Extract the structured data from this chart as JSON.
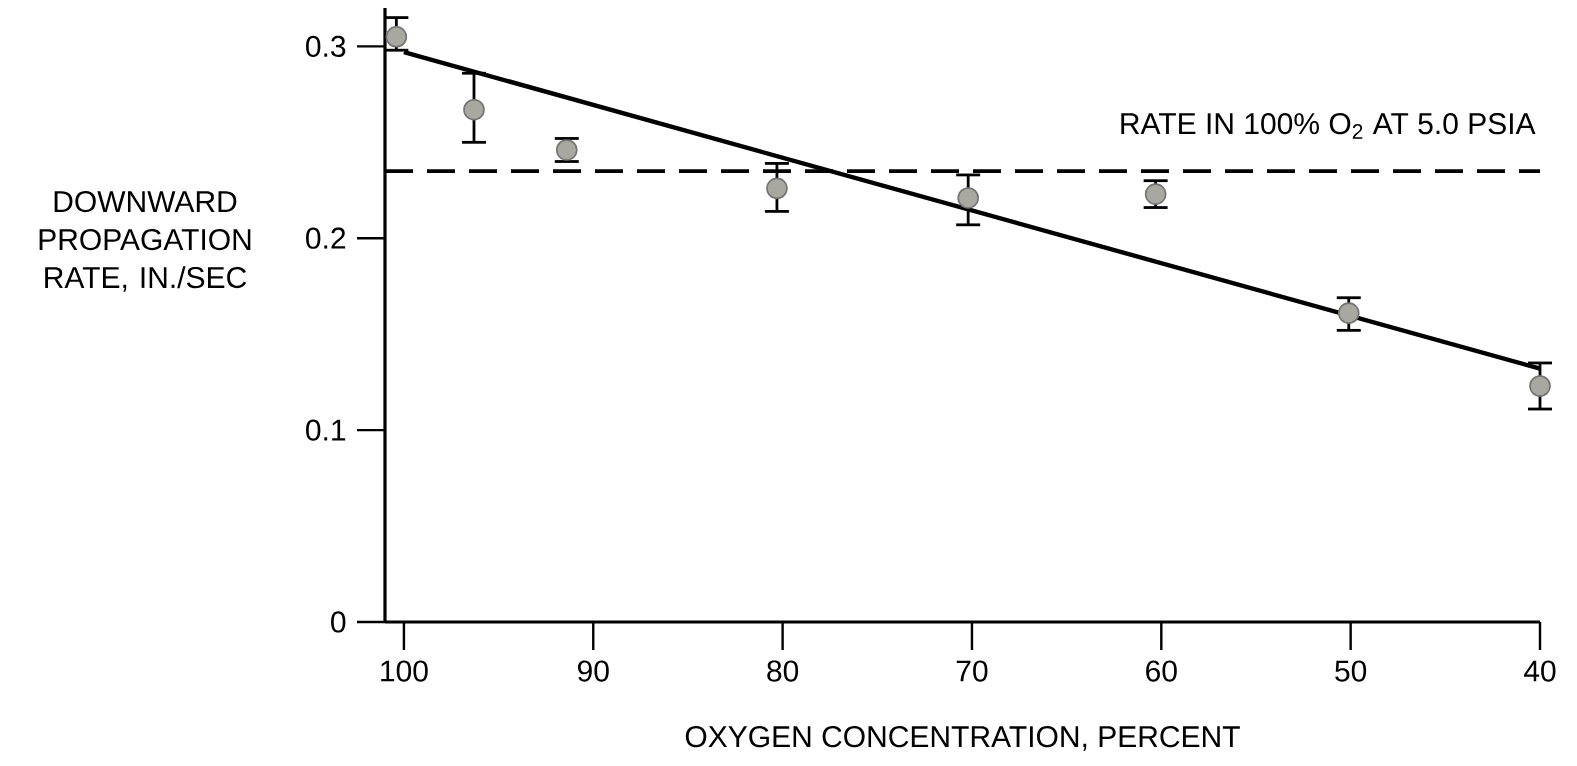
{
  "chart_data": {
    "type": "scatter",
    "xlabel": "OXYGEN CONCENTRATION, PERCENT",
    "ylabel": "DOWNWARD PROPAGATION RATE, IN./SEC",
    "xlim": [
      101,
      40
    ],
    "xticks": [
      100,
      90,
      80,
      70,
      60,
      50,
      40
    ],
    "ylim": [
      0,
      0.32
    ],
    "yticks": [
      0,
      0.1,
      0.2,
      0.3
    ],
    "grid": false,
    "series": [
      {
        "color": "#a8a8a0",
        "marker": "circle",
        "x": [
          100.4,
          96.3,
          91.4,
          80.3,
          70.2,
          60.3,
          50.1,
          40
        ],
        "values": [
          0.305,
          0.267,
          0.246,
          0.226,
          0.221,
          0.223,
          0.161,
          0.123
        ],
        "errors": [
          [
            0.298,
            0.315
          ],
          [
            0.25,
            0.286
          ],
          [
            0.24,
            0.252
          ],
          [
            0.214,
            0.239
          ],
          [
            0.207,
            0.233
          ],
          [
            0.216,
            0.23
          ],
          [
            0.152,
            0.169
          ],
          [
            0.111,
            0.135
          ]
        ]
      },
      {
        "type": "line",
        "color": "#000000",
        "marker": "none",
        "line_style": "solid",
        "x": [
          100,
          40
        ],
        "values": [
          0.297,
          0.132
        ]
      }
    ],
    "ref_lines": [
      {
        "axis": "y",
        "value": 0.235,
        "label": "RATE IN 100% O$_{2}$ AT 5.0 PSIA",
        "color": "#000000",
        "line_style": "dashed"
      }
    ]
  }
}
